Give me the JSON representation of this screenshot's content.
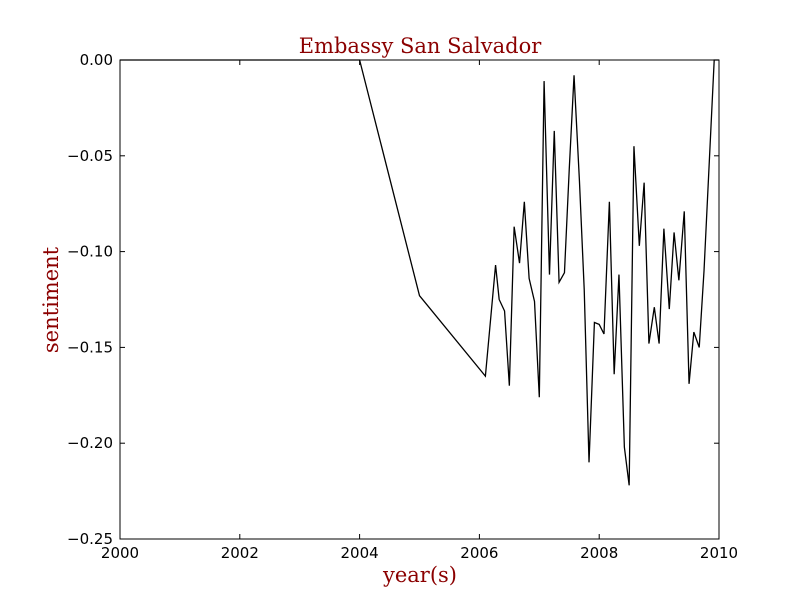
{
  "chart_data": {
    "type": "line",
    "title": "Embassy San Salvador",
    "xlabel": "year(s)",
    "ylabel": "sentiment",
    "xlim": [
      2000,
      2010
    ],
    "ylim": [
      -0.25,
      0.0
    ],
    "x_ticks": [
      2000,
      2002,
      2004,
      2006,
      2008,
      2010
    ],
    "y_ticks": [
      0.0,
      -0.05,
      -0.1,
      -0.15,
      -0.2,
      -0.25
    ],
    "x_tick_labels": [
      "2000",
      "2002",
      "2004",
      "2006",
      "2008",
      "2010"
    ],
    "y_tick_labels": [
      "0.00",
      "−0.05",
      "−0.10",
      "−0.15",
      "−0.20",
      "−0.25"
    ],
    "grid": false,
    "line_color": "#000000",
    "text_color": "#8b0000",
    "series": [
      {
        "x": [
          2000.0,
          2004.0,
          2005.0,
          2006.1,
          2006.27,
          2006.33,
          2006.42,
          2006.5,
          2006.58,
          2006.67,
          2006.75,
          2006.83,
          2006.92,
          2007.0,
          2007.08,
          2007.17,
          2007.25,
          2007.33,
          2007.42,
          2007.5,
          2007.58,
          2007.67,
          2007.75,
          2007.83,
          2007.92,
          2008.0,
          2008.08,
          2008.17,
          2008.25,
          2008.33,
          2008.42,
          2008.5,
          2008.58,
          2008.67,
          2008.75,
          2008.83,
          2008.92,
          2009.0,
          2009.08,
          2009.17,
          2009.25,
          2009.33,
          2009.42,
          2009.5,
          2009.58,
          2009.67,
          2009.75,
          2009.92,
          2010.0
        ],
        "y": [
          0.0,
          0.0,
          -0.123,
          -0.165,
          -0.107,
          -0.125,
          -0.131,
          -0.17,
          -0.087,
          -0.106,
          -0.074,
          -0.114,
          -0.126,
          -0.176,
          -0.011,
          -0.112,
          -0.037,
          -0.116,
          -0.111,
          -0.057,
          -0.008,
          -0.063,
          -0.12,
          -0.21,
          -0.137,
          -0.138,
          -0.143,
          -0.074,
          -0.164,
          -0.112,
          -0.202,
          -0.222,
          -0.045,
          -0.097,
          -0.064,
          -0.148,
          -0.129,
          -0.148,
          -0.088,
          -0.13,
          -0.09,
          -0.115,
          -0.079,
          -0.169,
          -0.142,
          -0.15,
          -0.11,
          0.0,
          0.0
        ]
      }
    ]
  }
}
